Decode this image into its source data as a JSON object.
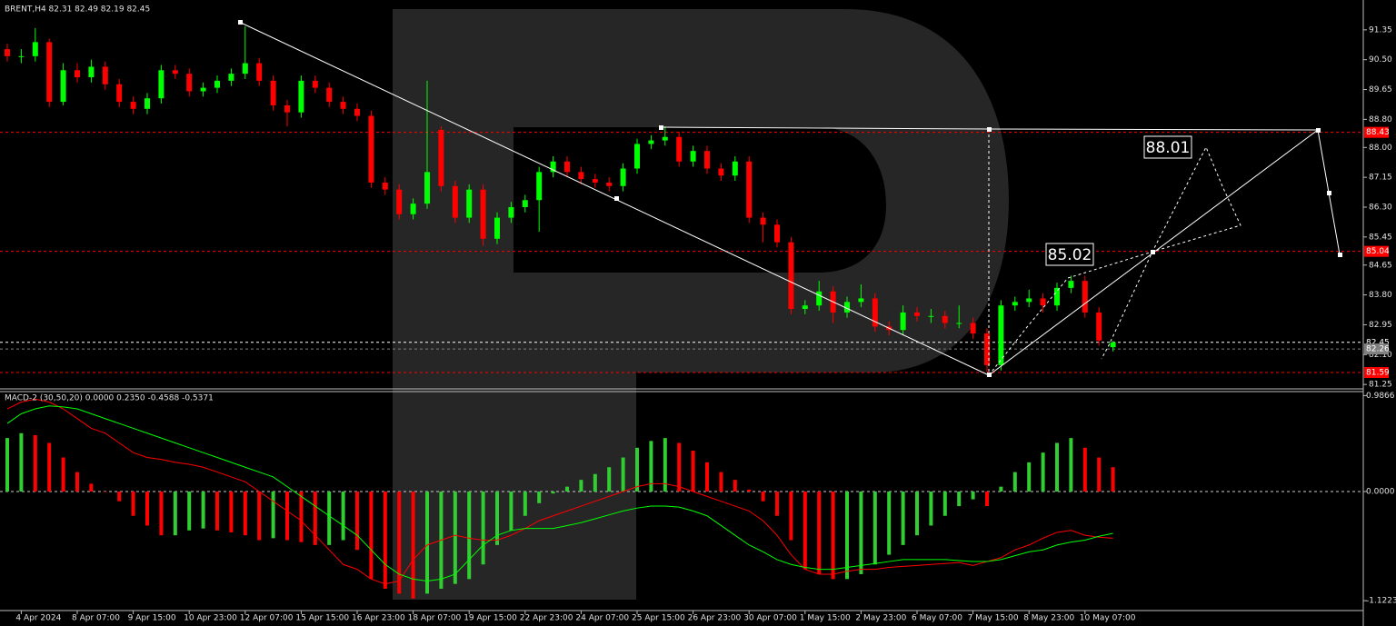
{
  "chart_data": [
    {
      "type": "candlestick",
      "title": "BRENT,H4 82.31 82.49 82.19 82.45",
      "categories": [
        null,
        "4 Apr 2024",
        null,
        null,
        null,
        "8 Apr 07:00",
        null,
        null,
        null,
        "9 Apr 15:00",
        null,
        null,
        null,
        "10 Apr 23:00",
        null,
        null,
        null,
        "12 Apr 07:00",
        null,
        null,
        null,
        "15 Apr 15:00",
        null,
        null,
        null,
        "16 Apr 23:00",
        null,
        null,
        null,
        "18 Apr 07:00",
        null,
        null,
        null,
        "19 Apr 15:00",
        null,
        null,
        null,
        "22 Apr 23:00",
        null,
        null,
        null,
        "24 Apr 07:00",
        null,
        null,
        null,
        "25 Apr 15:00",
        null,
        null,
        null,
        "26 Apr 23:00",
        null,
        null,
        null,
        "30 Apr 07:00",
        null,
        null,
        null,
        "1 May 15:00",
        null,
        null,
        null,
        "2 May 23:00",
        null,
        null,
        null,
        "6 May 07:00",
        null,
        null,
        null,
        "7 May 15:00",
        null,
        null,
        null,
        "8 May 23:00",
        null,
        null,
        null,
        "10 May 07:00",
        null,
        null
      ],
      "open": [
        90.8,
        90.6,
        90.6,
        91.0,
        89.3,
        90.2,
        90.0,
        90.3,
        89.8,
        89.3,
        89.1,
        89.4,
        90.2,
        90.1,
        89.6,
        89.7,
        89.9,
        90.1,
        90.4,
        89.9,
        89.2,
        89.0,
        89.9,
        89.7,
        89.3,
        89.1,
        88.9,
        87.0,
        86.8,
        86.1,
        86.4,
        88.5,
        86.9,
        86.0,
        86.8,
        85.4,
        86.0,
        86.3,
        86.5,
        87.3,
        87.6,
        87.3,
        87.1,
        87.0,
        86.9,
        87.4,
        88.1,
        88.2,
        88.3,
        87.6,
        87.9,
        87.4,
        87.2,
        87.6,
        86.0,
        85.8,
        85.3,
        83.4,
        83.5,
        83.9,
        83.3,
        83.6,
        83.7,
        82.9,
        82.8,
        83.3,
        83.2,
        83.2,
        83.0,
        83.0,
        82.7,
        81.8,
        83.5,
        83.6,
        83.7,
        83.5,
        84.0,
        84.2,
        83.3,
        82.31
      ],
      "high": [
        90.95,
        90.8,
        91.4,
        91.1,
        90.4,
        90.4,
        90.5,
        90.45,
        89.95,
        89.45,
        89.55,
        90.35,
        90.35,
        90.25,
        89.85,
        90.05,
        90.25,
        91.45,
        90.55,
        90.05,
        89.35,
        90.05,
        90.05,
        89.85,
        89.45,
        89.25,
        89.05,
        87.15,
        86.95,
        86.55,
        89.9,
        88.6,
        87.05,
        86.95,
        86.95,
        86.15,
        86.45,
        86.65,
        87.45,
        87.75,
        87.75,
        87.45,
        87.25,
        87.15,
        87.55,
        88.25,
        88.35,
        88.6,
        88.45,
        88.05,
        88.05,
        87.55,
        87.75,
        87.75,
        86.15,
        85.95,
        85.45,
        83.65,
        84.2,
        84.05,
        83.75,
        84.1,
        83.85,
        83.05,
        83.5,
        83.45,
        83.4,
        83.35,
        83.5,
        83.15,
        82.85,
        83.65,
        83.75,
        83.95,
        83.85,
        84.15,
        84.35,
        84.35,
        83.45,
        82.49
      ],
      "low": [
        90.45,
        90.4,
        90.45,
        89.15,
        89.2,
        89.85,
        89.85,
        89.65,
        89.15,
        88.95,
        88.95,
        89.25,
        89.95,
        89.45,
        89.45,
        89.55,
        89.75,
        89.95,
        89.75,
        89.05,
        88.6,
        88.85,
        89.55,
        89.15,
        88.95,
        88.75,
        86.85,
        86.65,
        85.95,
        85.95,
        86.25,
        86.75,
        85.85,
        85.85,
        85.2,
        85.25,
        85.85,
        86.15,
        85.6,
        87.15,
        87.15,
        86.95,
        86.85,
        86.75,
        86.75,
        87.25,
        87.95,
        88.05,
        87.45,
        87.45,
        87.25,
        87.05,
        87.05,
        85.85,
        85.3,
        85.15,
        83.25,
        83.25,
        83.35,
        83.0,
        83.15,
        83.45,
        82.75,
        82.65,
        82.65,
        83.05,
        83.0,
        82.85,
        82.85,
        82.55,
        81.59,
        81.65,
        83.35,
        83.45,
        83.3,
        83.35,
        83.85,
        83.15,
        82.35,
        82.19
      ],
      "close": [
        90.6,
        90.6,
        91.0,
        89.3,
        90.2,
        90.0,
        90.3,
        89.8,
        89.3,
        89.1,
        89.4,
        90.2,
        90.1,
        89.6,
        89.7,
        89.9,
        90.1,
        90.4,
        89.9,
        89.2,
        89.0,
        89.9,
        89.7,
        89.3,
        89.1,
        88.9,
        87.0,
        86.8,
        86.1,
        86.4,
        87.3,
        86.9,
        86.0,
        86.8,
        85.4,
        86.0,
        86.3,
        86.5,
        87.3,
        87.6,
        87.3,
        87.1,
        87.0,
        86.9,
        87.4,
        88.1,
        88.2,
        88.3,
        87.6,
        87.9,
        87.4,
        87.2,
        87.6,
        86.0,
        85.8,
        85.3,
        83.4,
        83.5,
        83.9,
        83.3,
        83.6,
        83.7,
        82.9,
        82.8,
        83.3,
        83.2,
        83.2,
        83.0,
        83.0,
        82.7,
        81.8,
        83.5,
        83.6,
        83.7,
        83.5,
        84.0,
        84.2,
        83.3,
        82.5,
        82.45
      ],
      "up_color": "#00ff00",
      "down_color": "#ff0000",
      "ylim": [
        81.15,
        92.2
      ],
      "yticks": [
        91.35,
        {
          "value": 90.5,
          "label": "90.50"
        },
        89.65,
        {
          "value": 88.8,
          "label": "88.80"
        },
        {
          "value": 88,
          "label": "88.00"
        },
        87.15,
        {
          "value": 86.3,
          "label": "86.30"
        },
        85.45,
        84.65,
        {
          "value": 83.8,
          "label": "83.80"
        },
        82.95,
        {
          "value": 82.1,
          "label": "82.10"
        },
        81.25
      ],
      "levels": [
        {
          "value": 88.43,
          "color": "#ff0000"
        },
        {
          "value": 85.04,
          "color": "#ff0000"
        },
        {
          "value": 81.59,
          "color": "#ff0000"
        },
        {
          "value": 82.45,
          "color": "#ffffff"
        },
        {
          "value": 82.26,
          "color": "#808080"
        }
      ],
      "annotations": [
        "88.01",
        "85.02"
      ]
    },
    {
      "type": "macd",
      "title": "MACD-2 (30,50,20) 0.0000 0.2350 -0.4588 -0.5371",
      "histogram": [
        0.55,
        0.6,
        0.58,
        0.5,
        0.35,
        0.2,
        0.08,
        0.0,
        -0.1,
        -0.25,
        -0.35,
        -0.45,
        -0.45,
        -0.4,
        -0.38,
        -0.4,
        -0.42,
        -0.45,
        -0.5,
        -0.48,
        -0.5,
        -0.52,
        -0.55,
        -0.55,
        -0.5,
        -0.6,
        -0.9,
        -1.0,
        -1.05,
        -1.1,
        -1.05,
        -1.0,
        -0.95,
        -0.9,
        -0.75,
        -0.55,
        -0.4,
        -0.25,
        -0.12,
        -0.02,
        0.05,
        0.12,
        0.18,
        0.25,
        0.35,
        0.45,
        0.52,
        0.55,
        0.5,
        0.42,
        0.3,
        0.2,
        0.12,
        0.02,
        -0.1,
        -0.25,
        -0.5,
        -0.8,
        -0.85,
        -0.9,
        -0.9,
        -0.85,
        -0.75,
        -0.65,
        -0.55,
        -0.45,
        -0.35,
        -0.25,
        -0.15,
        -0.08,
        -0.15,
        0.05,
        0.2,
        0.3,
        0.4,
        0.5,
        0.55,
        0.45,
        0.35,
        0.25
      ],
      "up_color": "#32cd32",
      "down_color": "#ff0000",
      "series": [
        {
          "color": "#ff0000",
          "values": [
            0.85,
            0.92,
            0.95,
            0.92,
            0.85,
            0.75,
            0.65,
            0.6,
            0.5,
            0.4,
            0.35,
            0.33,
            0.3,
            0.28,
            0.25,
            0.2,
            0.15,
            0.1,
            0.0,
            -0.1,
            -0.2,
            -0.3,
            -0.45,
            -0.6,
            -0.75,
            -0.8,
            -0.9,
            -0.95,
            -0.92,
            -0.7,
            -0.55,
            -0.5,
            -0.45,
            -0.48,
            -0.5,
            -0.5,
            -0.45,
            -0.38,
            -0.3,
            -0.25,
            -0.2,
            -0.15,
            -0.1,
            -0.05,
            0.0,
            0.05,
            0.08,
            0.08,
            0.05,
            0.0,
            -0.05,
            -0.1,
            -0.15,
            -0.2,
            -0.3,
            -0.45,
            -0.65,
            -0.8,
            -0.85,
            -0.85,
            -0.82,
            -0.8,
            -0.8,
            -0.78,
            -0.77,
            -0.76,
            -0.75,
            -0.74,
            -0.73,
            -0.76,
            -0.72,
            -0.68,
            -0.6,
            -0.55,
            -0.48,
            -0.42,
            -0.4,
            -0.45,
            -0.47,
            -0.48
          ]
        },
        {
          "color": "#00ff00",
          "values": [
            0.7,
            0.8,
            0.85,
            0.88,
            0.87,
            0.85,
            0.8,
            0.75,
            0.7,
            0.65,
            0.6,
            0.55,
            0.5,
            0.45,
            0.4,
            0.35,
            0.3,
            0.25,
            0.2,
            0.15,
            0.05,
            -0.05,
            -0.15,
            -0.25,
            -0.35,
            -0.45,
            -0.6,
            -0.75,
            -0.85,
            -0.9,
            -0.92,
            -0.9,
            -0.85,
            -0.7,
            -0.55,
            -0.45,
            -0.4,
            -0.38,
            -0.38,
            -0.38,
            -0.35,
            -0.32,
            -0.28,
            -0.24,
            -0.2,
            -0.17,
            -0.15,
            -0.15,
            -0.16,
            -0.2,
            -0.25,
            -0.35,
            -0.45,
            -0.55,
            -0.62,
            -0.7,
            -0.75,
            -0.78,
            -0.8,
            -0.8,
            -0.78,
            -0.76,
            -0.74,
            -0.72,
            -0.7,
            -0.7,
            -0.7,
            -0.7,
            -0.71,
            -0.72,
            -0.72,
            -0.7,
            -0.66,
            -0.62,
            -0.6,
            -0.55,
            -0.52,
            -0.5,
            -0.46,
            -0.43
          ]
        }
      ],
      "ylim": [
        -1.252,
        1.037
      ],
      "yticks": [
        0.9866,
        {
          "value": 0,
          "label": "0.0000"
        },
        -1.1223
      ]
    }
  ]
}
